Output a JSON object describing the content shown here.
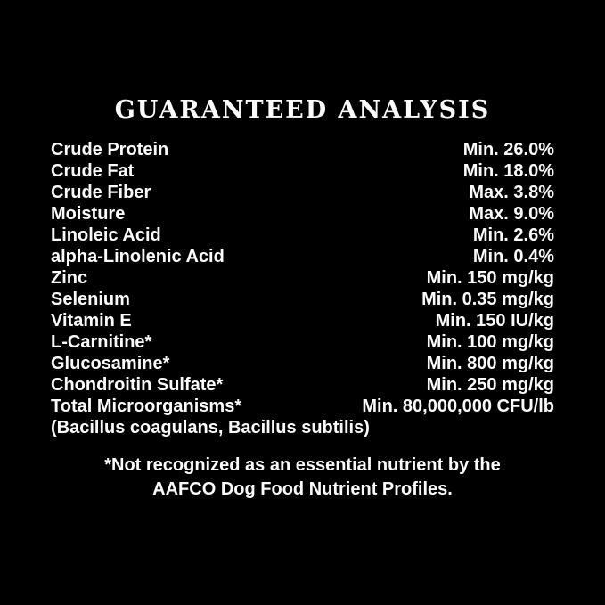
{
  "title": "GUARANTEED ANALYSIS",
  "nutrients": [
    {
      "name": "Crude Protein",
      "value": "Min. 26.0%"
    },
    {
      "name": "Crude Fat",
      "value": "Min. 18.0%"
    },
    {
      "name": "Crude Fiber",
      "value": "Max. 3.8%"
    },
    {
      "name": "Moisture",
      "value": "Max. 9.0%"
    },
    {
      "name": "Linoleic Acid",
      "value": "Min. 2.6%"
    },
    {
      "name": "alpha-Linolenic Acid",
      "value": "Min. 0.4%"
    },
    {
      "name": "Zinc",
      "value": "Min. 150 mg/kg"
    },
    {
      "name": "Selenium",
      "value": "Min. 0.35 mg/kg"
    },
    {
      "name": "Vitamin E",
      "value": "Min. 150 IU/kg"
    },
    {
      "name": "L-Carnitine*",
      "value": "Min. 100 mg/kg"
    },
    {
      "name": "Glucosamine*",
      "value": "Min. 800 mg/kg"
    },
    {
      "name": "Chondroitin Sulfate*",
      "value": "Min. 250 mg/kg"
    },
    {
      "name": "Total Microorganisms*",
      "value": "Min. 80,000,000 CFU/lb"
    }
  ],
  "microorganisms_detail": "(Bacillus coagulans, Bacillus subtilis)",
  "footnote": {
    "line1": "*Not recognized as an essential nutrient by the",
    "line2": "AAFCO Dog Food Nutrient Profiles."
  },
  "colors": {
    "background": "#000000",
    "text": "#fbfbfb"
  }
}
